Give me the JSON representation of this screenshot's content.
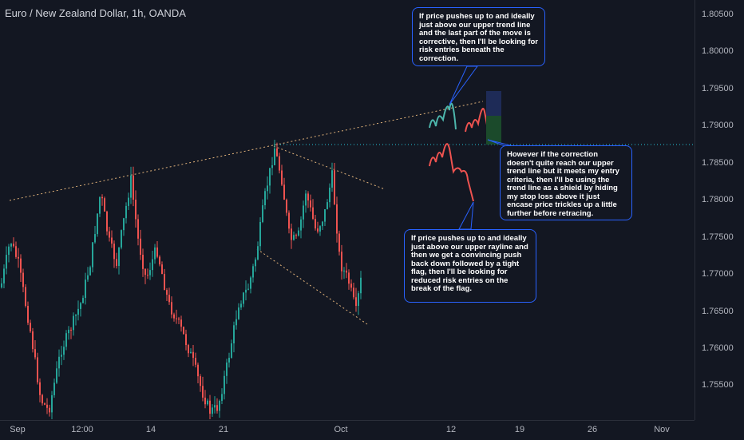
{
  "symbol": {
    "title": "Euro / New Zealand Dollar, 1h, OANDA"
  },
  "colors": {
    "up": "#26a69a",
    "down": "#ef5350",
    "accent": "#2962ff",
    "background": "#131722"
  },
  "price_axis": {
    "labels": [
      "1.80500",
      "1.80000",
      "1.79500",
      "1.79000",
      "1.78500",
      "1.78000",
      "1.77500",
      "1.77000",
      "1.76500",
      "1.76000",
      "1.75500"
    ]
  },
  "time_axis": {
    "labels": [
      "Sep",
      "12:00",
      "14",
      "21",
      "Oct",
      "12",
      "19",
      "26",
      "Nov"
    ]
  },
  "notes": {
    "top": "If price pushes up to and ideally just above our upper trend line and the last part of the move is corrective, then I'll be looking for risk entries beneath the correction.",
    "right": "However if the correction doesn't quite reach our upper trend line but it meets my entry criteria, then I'll be using the trend line as a shield by hiding my stop loss above it just encase price trickles up a little further before retracing.",
    "bottom": "If price pushes up to and ideally just above our upper rayline and then we get a convincing push back down followed by a tight flag, then I'll be looking for reduced risk entries on the break of the flag."
  }
}
